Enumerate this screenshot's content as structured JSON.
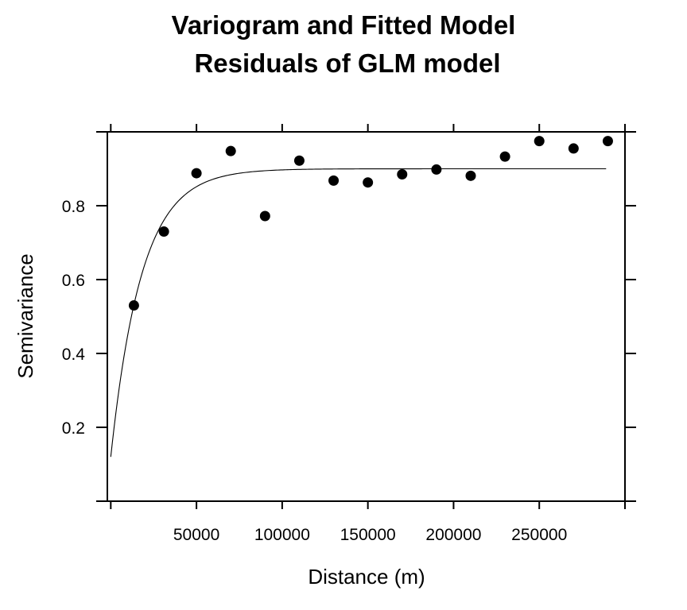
{
  "chart_data": {
    "type": "scatter",
    "title": "Variogram and Fitted Model",
    "subtitle": "Residuals of GLM model",
    "xlabel": "Distance (m)",
    "ylabel": "Semivariance",
    "xlim": [
      -2000,
      300000
    ],
    "ylim": [
      0.0,
      1.0
    ],
    "x_ticks": [
      50000,
      100000,
      150000,
      200000,
      250000
    ],
    "x_tick_labels": [
      "50000",
      "100000",
      "150000",
      "200000",
      "250000"
    ],
    "y_ticks": [
      0.2,
      0.4,
      0.6,
      0.8
    ],
    "y_tick_labels": [
      "0.2",
      "0.4",
      "0.6",
      "0.8"
    ],
    "grid": false,
    "series": [
      {
        "name": "empirical variogram",
        "kind": "points",
        "x": [
          13500,
          31000,
          50000,
          70000,
          90000,
          110000,
          130000,
          150000,
          170000,
          190000,
          210000,
          230000,
          250000,
          270000,
          290000
        ],
        "y": [
          0.53,
          0.73,
          0.888,
          0.948,
          0.772,
          0.922,
          0.868,
          0.863,
          0.885,
          0.898,
          0.881,
          0.933,
          0.975,
          0.955,
          0.975
        ]
      },
      {
        "name": "fitted model",
        "kind": "line",
        "model": "exponential",
        "nugget": 0.12,
        "psill": 0.78,
        "range": 18000,
        "x_max": 289000
      }
    ]
  }
}
